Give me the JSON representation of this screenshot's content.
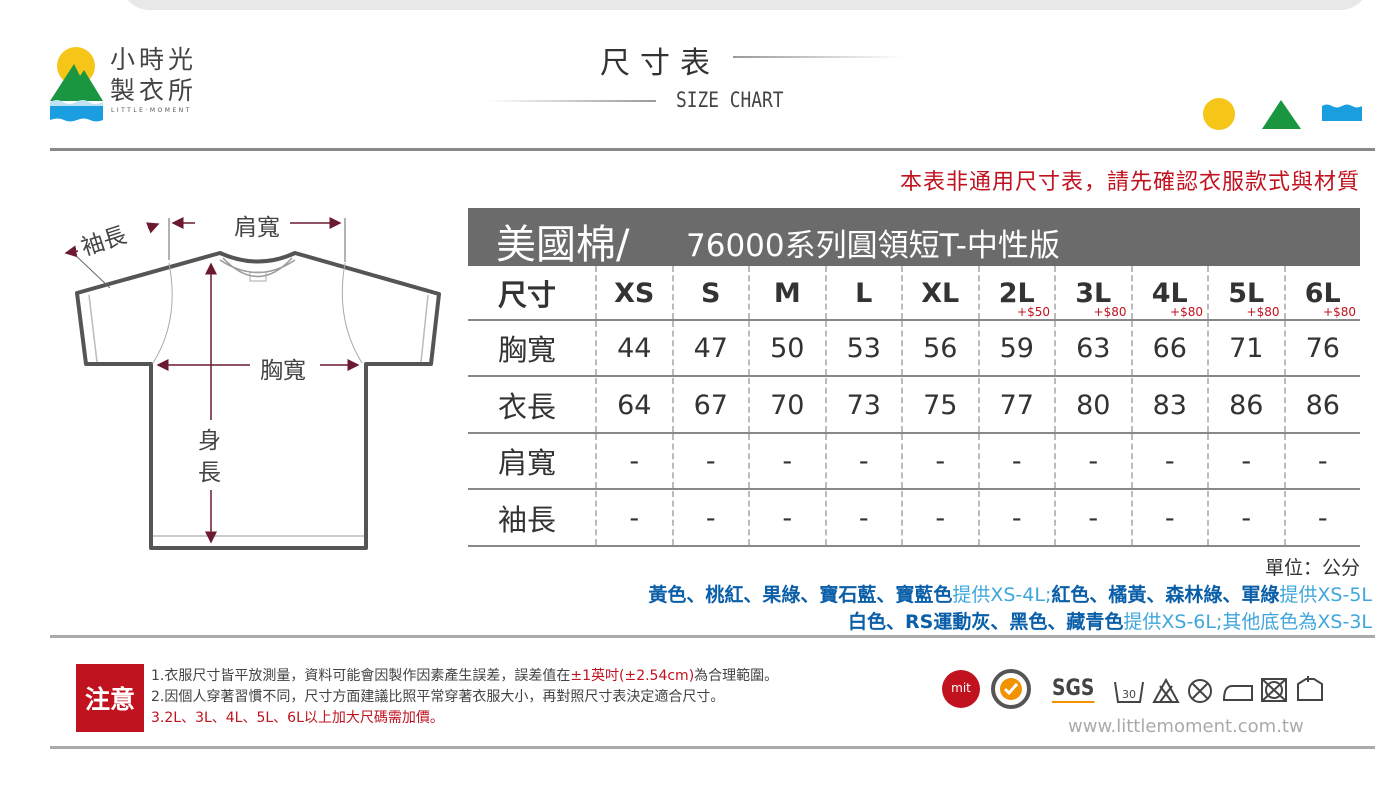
{
  "brand": {
    "name_line1": "小時光",
    "name_line2": "製衣所",
    "name_en": "LITTLE·MOMENT"
  },
  "header": {
    "title": "尺寸表",
    "subtitle": "SIZE CHART"
  },
  "notice": "本表非通用尺寸表，請先確認衣服款式與材質",
  "table": {
    "title_main": "美國棉/",
    "title_rest": "76000系列圓領短T-中性版",
    "size_label": "尺寸",
    "sizes": [
      {
        "s": "XS",
        "p": ""
      },
      {
        "s": "S",
        "p": ""
      },
      {
        "s": "M",
        "p": ""
      },
      {
        "s": "L",
        "p": ""
      },
      {
        "s": "XL",
        "p": ""
      },
      {
        "s": "2L",
        "p": "+$50"
      },
      {
        "s": "3L",
        "p": "+$80"
      },
      {
        "s": "4L",
        "p": "+$80"
      },
      {
        "s": "5L",
        "p": "+$80"
      },
      {
        "s": "6L",
        "p": "+$80"
      }
    ],
    "rows": [
      {
        "label": "胸寬",
        "values": [
          "44",
          "47",
          "50",
          "53",
          "56",
          "59",
          "63",
          "66",
          "71",
          "76"
        ]
      },
      {
        "label": "衣長",
        "values": [
          "64",
          "67",
          "70",
          "73",
          "75",
          "77",
          "80",
          "83",
          "86",
          "86"
        ]
      },
      {
        "label": "肩寬",
        "values": [
          "-",
          "-",
          "-",
          "-",
          "-",
          "-",
          "-",
          "-",
          "-",
          "-"
        ]
      },
      {
        "label": "袖長",
        "values": [
          "-",
          "-",
          "-",
          "-",
          "-",
          "-",
          "-",
          "-",
          "-",
          "-"
        ]
      }
    ]
  },
  "diagram": {
    "sleeve": "袖長",
    "shoulder": "肩寬",
    "chest": "胸寬",
    "length1": "身",
    "length2": "長"
  },
  "unit": "單位：公分",
  "colors": {
    "line1a": "黃色、桃紅、果綠、寶石藍、寶藍色",
    "line1b": "提供XS-4L;",
    "line1c": "紅色、橘黃、森林綠、軍綠",
    "line1d": "提供XS-5L",
    "line2a": "白色、RS運動灰、黑色、藏青色",
    "line2b": "提供XS-6L;其他底色為XS-3L"
  },
  "warning": {
    "label": "注意",
    "note1a": "1.衣服尺寸皆平放測量，資料可能會因製作因素產生誤差，誤差值在",
    "note1b": "±1英吋(±2.54cm)",
    "note1c": "為合理範圍。",
    "note2": "2.因個人穿著習慣不同，尺寸方面建議比照平常穿著衣服大小，再對照尺寸表決定適合尺寸。",
    "note3": "3.2L、3L、4L、5L、6L以上加大尺碼需加價。"
  },
  "badges": {
    "mit": "mit",
    "sgs": "SGS",
    "wash": "30"
  },
  "website": "www.littlemoment.com.tw",
  "accent_colors": {
    "red": "#c1121f",
    "yellow": "#f5c518",
    "green": "#1a9640",
    "blue": "#1a9ee0"
  }
}
